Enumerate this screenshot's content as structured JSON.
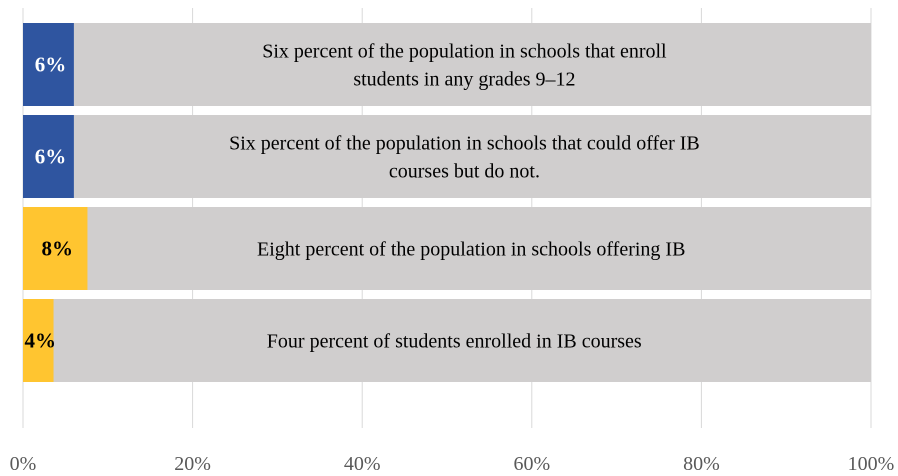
{
  "chart_data": {
    "type": "bar",
    "orientation": "horizontal",
    "stacked": "overlay-on-100-track",
    "xlim": [
      0,
      100
    ],
    "xticks": [
      "0%",
      "20%",
      "40%",
      "60%",
      "80%",
      "100%"
    ],
    "grid": true,
    "track_color": "#d0cece",
    "bars": [
      {
        "value": 6,
        "value_label": "6%",
        "color": "#2f55a0",
        "label_color": "#ffffff",
        "description": [
          "Six percent of the population in schools that enroll",
          "students in any grades 9–12"
        ]
      },
      {
        "value": 6,
        "value_label": "6%",
        "color": "#2f55a0",
        "label_color": "#ffffff",
        "description": [
          "Six percent of the population in schools that could offer IB",
          "courses but do not."
        ]
      },
      {
        "value": 7.6,
        "value_label": "8%",
        "color": "#ffc530",
        "label_color": "#000000",
        "description": [
          "Eight percent of the population in schools offering IB"
        ]
      },
      {
        "value": 3.6,
        "value_label": "4%",
        "color": "#ffc530",
        "label_color": "#000000",
        "description": [
          "Four percent of students enrolled in IB courses"
        ]
      }
    ]
  }
}
